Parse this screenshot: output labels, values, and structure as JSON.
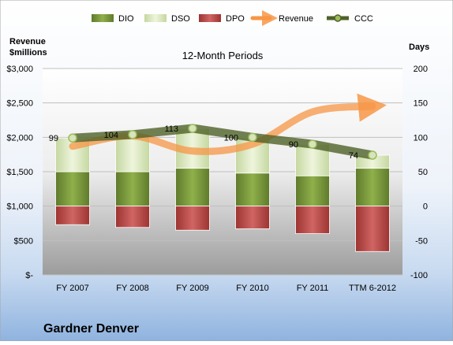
{
  "chart_data": {
    "type": "bar",
    "title": "12-Month Periods",
    "company": "Gardner Denver",
    "y_left_label_line1": "Revenue",
    "y_left_label_line2": "$millions",
    "y_right_label": "Days",
    "y_left_range": [
      0,
      3000
    ],
    "y_right_range": [
      -100,
      200
    ],
    "y_left_ticks": [
      "$-",
      "$500",
      "$1,000",
      "$1,500",
      "$2,000",
      "$2,500",
      "$3,000"
    ],
    "y_right_ticks": [
      "-100",
      "-50",
      "0",
      "50",
      "100",
      "150",
      "200"
    ],
    "categories": [
      "FY 2007",
      "FY 2008",
      "FY 2009",
      "FY 2010",
      "FY 2011",
      "TTM 6-2012"
    ],
    "legend": [
      "DIO",
      "DSO",
      "DPO",
      "Revenue",
      "CCC"
    ],
    "legend_position": "top",
    "grid": true,
    "colors": {
      "DIO": "#76933c",
      "DSO": "#d7e4bd",
      "DPO": "#c0504d",
      "Revenue": "#f79646",
      "CCC": "#4f6228"
    },
    "series": [
      {
        "name": "DIO",
        "axis": "days",
        "values": [
          50,
          50,
          55,
          48,
          44,
          55
        ]
      },
      {
        "name": "DSO",
        "axis": "days",
        "values": [
          49,
          54,
          58,
          52,
          46,
          19
        ]
      },
      {
        "name": "DPO",
        "axis": "days",
        "values": [
          -27,
          -31,
          -35,
          -33,
          -40,
          -66
        ]
      },
      {
        "name": "Revenue",
        "axis": "revenue",
        "values": [
          1870,
          2020,
          1800,
          1900,
          2370,
          2450
        ]
      },
      {
        "name": "CCC",
        "axis": "days",
        "values": [
          99,
          104,
          113,
          100,
          90,
          74
        ]
      }
    ],
    "ccc_labels": [
      "99",
      "104",
      "113",
      "100",
      "90",
      "74"
    ]
  }
}
